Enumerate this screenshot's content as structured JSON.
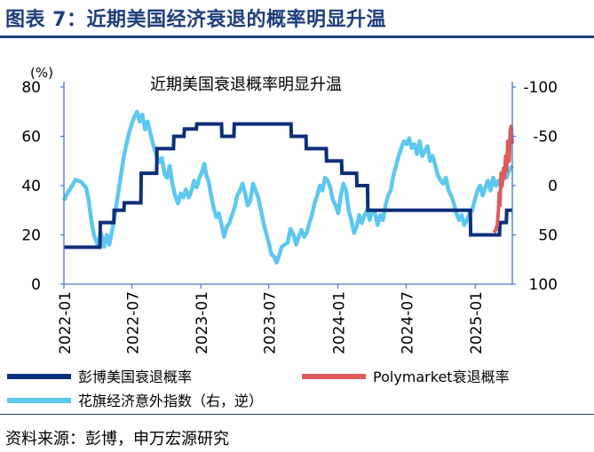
{
  "figure": {
    "label": "图表 7：近期美国经济衰退的概率明显升温",
    "source": "资料来源：彭博，申万宏源研究"
  },
  "chart_data": {
    "type": "line",
    "title": "近期美国衰退概率明显升温",
    "left_axis": {
      "unit": "(%)",
      "ylim": [
        0,
        80
      ],
      "ticks": [
        0,
        20,
        40,
        60,
        80
      ]
    },
    "right_axis": {
      "ylim": [
        100,
        -100
      ],
      "inverted": true,
      "ticks": [
        -100,
        -50,
        0,
        50,
        100
      ]
    },
    "x_axis": {
      "range": [
        "2022-01-01",
        "2025-04-10"
      ],
      "ticks": [
        "2022-01",
        "2022-07",
        "2023-01",
        "2023-07",
        "2024-01",
        "2024-07",
        "2025-01"
      ]
    },
    "grid": false,
    "colors": {
      "bloomberg": "#0d2f7a",
      "polymarket": "#e05a5a",
      "citi": "#5cc8f0",
      "axis": "#4a74c9"
    },
    "series": [
      {
        "name": "彭博美国衰退概率",
        "axis": "left",
        "shape": "step",
        "points": [
          [
            "2022-01-01",
            15
          ],
          [
            "2022-04-07",
            15
          ],
          [
            "2022-04-08",
            25
          ],
          [
            "2022-05-14",
            25
          ],
          [
            "2022-05-15",
            30
          ],
          [
            "2022-06-10",
            30
          ],
          [
            "2022-06-11",
            33
          ],
          [
            "2022-07-25",
            33
          ],
          [
            "2022-07-26",
            45
          ],
          [
            "2022-09-05",
            45
          ],
          [
            "2022-09-06",
            55
          ],
          [
            "2022-10-20",
            55
          ],
          [
            "2022-10-21",
            60
          ],
          [
            "2022-11-17",
            60
          ],
          [
            "2022-11-18",
            63
          ],
          [
            "2022-12-20",
            63
          ],
          [
            "2022-12-21",
            65
          ],
          [
            "2023-02-25",
            65
          ],
          [
            "2023-02-26",
            60
          ],
          [
            "2023-03-30",
            60
          ],
          [
            "2023-03-31",
            65
          ],
          [
            "2023-08-29",
            65
          ],
          [
            "2023-08-30",
            60
          ],
          [
            "2023-10-08",
            60
          ],
          [
            "2023-10-09",
            55
          ],
          [
            "2023-12-01",
            55
          ],
          [
            "2023-12-02",
            50
          ],
          [
            "2024-01-11",
            50
          ],
          [
            "2024-01-12",
            45
          ],
          [
            "2024-02-20",
            45
          ],
          [
            "2024-02-21",
            40
          ],
          [
            "2024-03-20",
            40
          ],
          [
            "2024-03-21",
            30
          ],
          [
            "2024-12-19",
            30
          ],
          [
            "2024-12-20",
            20
          ],
          [
            "2025-03-07",
            20
          ],
          [
            "2025-03-08",
            25
          ],
          [
            "2025-03-25",
            25
          ],
          [
            "2025-03-26",
            30
          ],
          [
            "2025-04-10",
            30
          ]
        ]
      },
      {
        "name": "Polymarket衰退概率",
        "axis": "left",
        "points": [
          [
            "2025-02-20",
            21
          ],
          [
            "2025-02-25",
            22
          ],
          [
            "2025-03-01",
            24
          ],
          [
            "2025-03-04",
            30
          ],
          [
            "2025-03-06",
            37
          ],
          [
            "2025-03-08",
            32
          ],
          [
            "2025-03-11",
            45
          ],
          [
            "2025-03-14",
            40
          ],
          [
            "2025-03-17",
            47
          ],
          [
            "2025-03-20",
            43
          ],
          [
            "2025-03-23",
            52
          ],
          [
            "2025-03-26",
            46
          ],
          [
            "2025-03-29",
            58
          ],
          [
            "2025-04-02",
            50
          ],
          [
            "2025-04-04",
            62
          ],
          [
            "2025-04-07",
            64
          ],
          [
            "2025-04-10",
            57
          ]
        ]
      },
      {
        "name": "花旗经济意外指数（右，逆）",
        "axis": "right",
        "points": [
          [
            "2022-01-01",
            15
          ],
          [
            "2022-01-10",
            8
          ],
          [
            "2022-01-20",
            2
          ],
          [
            "2022-02-01",
            -6
          ],
          [
            "2022-02-15",
            -4
          ],
          [
            "2022-03-01",
            2
          ],
          [
            "2022-03-08",
            15
          ],
          [
            "2022-03-15",
            35
          ],
          [
            "2022-03-22",
            50
          ],
          [
            "2022-04-01",
            60
          ],
          [
            "2022-04-10",
            48
          ],
          [
            "2022-04-18",
            62
          ],
          [
            "2022-04-25",
            50
          ],
          [
            "2022-05-02",
            60
          ],
          [
            "2022-05-10",
            45
          ],
          [
            "2022-05-20",
            22
          ],
          [
            "2022-06-01",
            -8
          ],
          [
            "2022-06-10",
            -30
          ],
          [
            "2022-06-20",
            -48
          ],
          [
            "2022-06-30",
            -62
          ],
          [
            "2022-07-08",
            -70
          ],
          [
            "2022-07-15",
            -75
          ],
          [
            "2022-07-22",
            -65
          ],
          [
            "2022-07-29",
            -72
          ],
          [
            "2022-08-05",
            -57
          ],
          [
            "2022-08-12",
            -65
          ],
          [
            "2022-08-20",
            -52
          ],
          [
            "2022-08-28",
            -40
          ],
          [
            "2022-09-05",
            -30
          ],
          [
            "2022-09-12",
            -24
          ],
          [
            "2022-09-19",
            -28
          ],
          [
            "2022-09-26",
            -12
          ],
          [
            "2022-10-03",
            -8
          ],
          [
            "2022-10-10",
            -20
          ],
          [
            "2022-10-17",
            -2
          ],
          [
            "2022-10-24",
            10
          ],
          [
            "2022-11-01",
            18
          ],
          [
            "2022-11-08",
            8
          ],
          [
            "2022-11-15",
            12
          ],
          [
            "2022-11-22",
            4
          ],
          [
            "2022-11-30",
            12
          ],
          [
            "2022-12-07",
            5
          ],
          [
            "2022-12-14",
            -5
          ],
          [
            "2022-12-21",
            2
          ],
          [
            "2022-12-28",
            -8
          ],
          [
            "2023-01-04",
            -14
          ],
          [
            "2023-01-10",
            -22
          ],
          [
            "2023-01-16",
            -10
          ],
          [
            "2023-01-22",
            -4
          ],
          [
            "2023-01-28",
            10
          ],
          [
            "2023-02-04",
            22
          ],
          [
            "2023-02-11",
            32
          ],
          [
            "2023-02-18",
            28
          ],
          [
            "2023-02-25",
            40
          ],
          [
            "2023-03-04",
            52
          ],
          [
            "2023-03-11",
            42
          ],
          [
            "2023-03-18",
            38
          ],
          [
            "2023-03-25",
            30
          ],
          [
            "2023-04-01",
            22
          ],
          [
            "2023-04-08",
            10
          ],
          [
            "2023-04-15",
            5
          ],
          [
            "2023-04-22",
            -2
          ],
          [
            "2023-04-29",
            8
          ],
          [
            "2023-05-06",
            20
          ],
          [
            "2023-05-13",
            15
          ],
          [
            "2023-05-20",
            -2
          ],
          [
            "2023-05-27",
            5
          ],
          [
            "2023-06-03",
            12
          ],
          [
            "2023-06-10",
            25
          ],
          [
            "2023-06-17",
            38
          ],
          [
            "2023-06-24",
            48
          ],
          [
            "2023-07-01",
            58
          ],
          [
            "2023-07-08",
            70
          ],
          [
            "2023-07-15",
            72
          ],
          [
            "2023-07-22",
            78
          ],
          [
            "2023-07-29",
            70
          ],
          [
            "2023-08-05",
            62
          ],
          [
            "2023-08-12",
            60
          ],
          [
            "2023-08-20",
            58
          ],
          [
            "2023-08-28",
            44
          ],
          [
            "2023-09-05",
            50
          ],
          [
            "2023-09-12",
            60
          ],
          [
            "2023-09-19",
            52
          ],
          [
            "2023-09-26",
            45
          ],
          [
            "2023-10-03",
            52
          ],
          [
            "2023-10-10",
            48
          ],
          [
            "2023-10-17",
            38
          ],
          [
            "2023-10-24",
            30
          ],
          [
            "2023-10-31",
            18
          ],
          [
            "2023-11-07",
            10
          ],
          [
            "2023-11-14",
            0
          ],
          [
            "2023-11-21",
            5
          ],
          [
            "2023-11-28",
            -8
          ],
          [
            "2023-12-05",
            -5
          ],
          [
            "2023-12-12",
            2
          ],
          [
            "2023-12-19",
            15
          ],
          [
            "2023-12-26",
            20
          ],
          [
            "2024-01-02",
            28
          ],
          [
            "2024-01-09",
            10
          ],
          [
            "2024-01-16",
            -2
          ],
          [
            "2024-01-23",
            5
          ],
          [
            "2024-01-30",
            25
          ],
          [
            "2024-02-06",
            35
          ],
          [
            "2024-02-13",
            48
          ],
          [
            "2024-02-20",
            42
          ],
          [
            "2024-02-27",
            30
          ],
          [
            "2024-03-05",
            38
          ],
          [
            "2024-03-12",
            30
          ],
          [
            "2024-03-19",
            25
          ],
          [
            "2024-03-26",
            35
          ],
          [
            "2024-04-02",
            25
          ],
          [
            "2024-04-09",
            28
          ],
          [
            "2024-04-16",
            40
          ],
          [
            "2024-04-23",
            30
          ],
          [
            "2024-04-30",
            35
          ],
          [
            "2024-05-07",
            20
          ],
          [
            "2024-05-14",
            10
          ],
          [
            "2024-05-21",
            5
          ],
          [
            "2024-05-28",
            -10
          ],
          [
            "2024-06-04",
            -20
          ],
          [
            "2024-06-11",
            -30
          ],
          [
            "2024-06-18",
            -38
          ],
          [
            "2024-06-25",
            -45
          ],
          [
            "2024-07-02",
            -42
          ],
          [
            "2024-07-09",
            -48
          ],
          [
            "2024-07-16",
            -38
          ],
          [
            "2024-07-23",
            -42
          ],
          [
            "2024-07-30",
            -32
          ],
          [
            "2024-08-06",
            -45
          ],
          [
            "2024-08-13",
            -30
          ],
          [
            "2024-08-20",
            -35
          ],
          [
            "2024-08-27",
            -40
          ],
          [
            "2024-09-03",
            -25
          ],
          [
            "2024-09-10",
            -30
          ],
          [
            "2024-09-17",
            -20
          ],
          [
            "2024-09-24",
            -10
          ],
          [
            "2024-10-01",
            -5
          ],
          [
            "2024-10-08",
            -2
          ],
          [
            "2024-10-15",
            -8
          ],
          [
            "2024-10-22",
            5
          ],
          [
            "2024-10-29",
            10
          ],
          [
            "2024-11-05",
            18
          ],
          [
            "2024-11-12",
            28
          ],
          [
            "2024-11-19",
            35
          ],
          [
            "2024-11-26",
            30
          ],
          [
            "2024-12-03",
            40
          ],
          [
            "2024-12-10",
            35
          ],
          [
            "2024-12-17",
            28
          ],
          [
            "2024-12-24",
            25
          ],
          [
            "2024-12-31",
            15
          ],
          [
            "2025-01-07",
            5
          ],
          [
            "2025-01-14",
            0
          ],
          [
            "2025-01-21",
            10
          ],
          [
            "2025-01-28",
            2
          ],
          [
            "2025-02-04",
            -5
          ],
          [
            "2025-02-11",
            5
          ],
          [
            "2025-02-18",
            -8
          ],
          [
            "2025-02-25",
            0
          ],
          [
            "2025-03-04",
            -5
          ],
          [
            "2025-03-11",
            2
          ],
          [
            "2025-03-18",
            -10
          ],
          [
            "2025-03-25",
            -8
          ],
          [
            "2025-04-01",
            -15
          ],
          [
            "2025-04-10",
            -20
          ]
        ]
      }
    ]
  }
}
